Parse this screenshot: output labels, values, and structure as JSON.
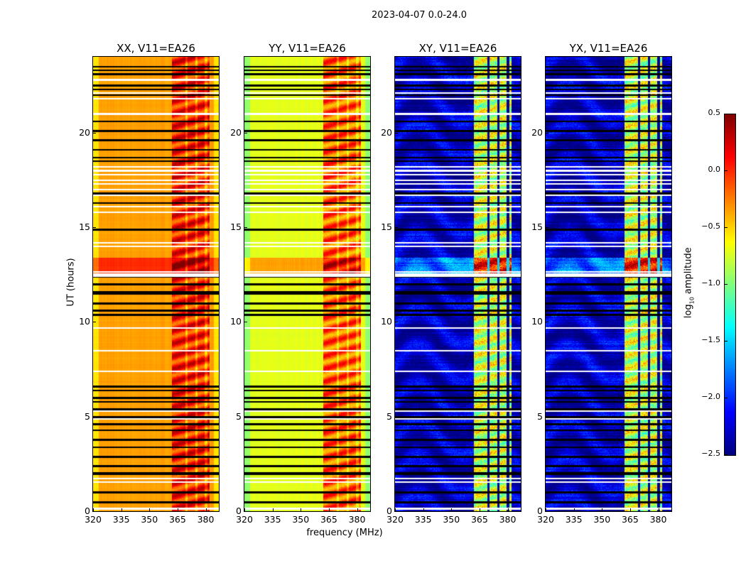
{
  "chart_data": {
    "type": "heatmap",
    "title": "2023-04-07 0.0-24.0",
    "xlabel": "frequency (MHz)",
    "ylabel": "UT (hours)",
    "xlim": [
      320,
      387
    ],
    "ylim": [
      0,
      24
    ],
    "xticks": [
      320,
      335,
      350,
      365,
      380
    ],
    "yticks": [
      0,
      5,
      10,
      15,
      20
    ],
    "colormap": "jet",
    "colorbar": {
      "label_main": "log",
      "label_sub": "10",
      "label_rest": " amplitude",
      "range": [
        -2.5,
        0.5
      ],
      "ticks": [
        0.5,
        0.0,
        -0.5,
        -1.0,
        -1.5,
        -2.0,
        -2.5
      ],
      "tick_labels": [
        "0.5",
        "0.0",
        "−0.5",
        "−1.0",
        "−1.5",
        "−2.0",
        "−2.5"
      ]
    },
    "rfi_band_mhz": [
      362,
      382
    ],
    "rfi_dark_channels_mhz": [
      369.5,
      375,
      380
    ],
    "flagged_black_ut": [
      0.5,
      1.0,
      2.0,
      2.05,
      2.4,
      2.9,
      3.4,
      3.8,
      4.3,
      4.6,
      5.0,
      5.4,
      5.8,
      6.0,
      6.4,
      6.6,
      10.4,
      10.6,
      11.0,
      11.5,
      11.6,
      12.0,
      12.4,
      14.9,
      16.3,
      16.8,
      18.5,
      18.7,
      19.1,
      19.6,
      20.1,
      20.6,
      22.0,
      22.3,
      22.5,
      23.1,
      23.3,
      23.5
    ],
    "flagged_white_ut": [
      0.15,
      1.55,
      1.75,
      4.9,
      5.3,
      7.4,
      8.5,
      9.7,
      12.45,
      12.55,
      12.65,
      14.0,
      14.2,
      15.8,
      16.1,
      16.7,
      17.0,
      17.3,
      17.5,
      17.8,
      18.0,
      18.2,
      21.0,
      21.8,
      22.1,
      22.8
    ],
    "hot_band_ut": [
      12.6,
      13.4
    ],
    "panels": [
      {
        "title": "XX, V11=EA26",
        "base_log_amp": -0.35,
        "edge_log_amp": -0.55,
        "rfi_log_amp": 0.05,
        "noise": 0.12
      },
      {
        "title": "YY, V11=EA26",
        "base_log_amp": -0.7,
        "edge_log_amp": -0.95,
        "rfi_log_amp": -0.15,
        "noise": 0.12
      },
      {
        "title": "XY, V11=EA26",
        "base_log_amp": -2.3,
        "edge_log_amp": -2.3,
        "rfi_log_amp": -0.8,
        "noise": 0.45
      },
      {
        "title": "YX, V11=EA26",
        "base_log_amp": -2.3,
        "edge_log_amp": -2.3,
        "rfi_log_amp": -0.8,
        "noise": 0.45
      }
    ]
  }
}
